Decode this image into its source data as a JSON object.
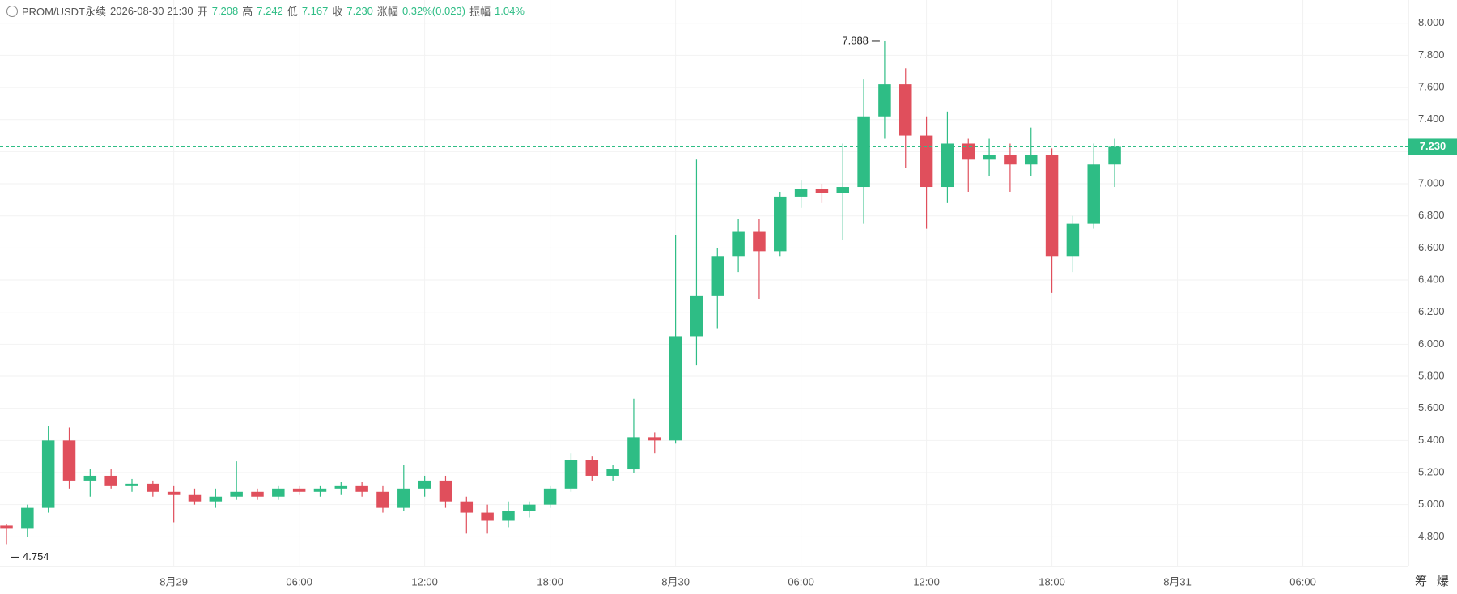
{
  "header": {
    "symbol": "PROM/USDT永续",
    "time": "2026-08-30 21:30",
    "open_label": "开",
    "open": "7.208",
    "high_label": "高",
    "high": "7.242",
    "low_label": "低",
    "low": "7.167",
    "close_label": "收",
    "close": "7.230",
    "change_label": "涨幅",
    "change": "0.32%(0.023)",
    "amplitude_label": "振幅",
    "amplitude": "1.04%"
  },
  "side_buttons": [
    "筹",
    "爆"
  ],
  "chart_data": {
    "type": "candlestick",
    "up_color": "#2ebd85",
    "down_color": "#e04f5c",
    "grid": true,
    "x": [
      -8,
      -7,
      -6,
      -5,
      -4,
      -3,
      -2,
      -1,
      0,
      1,
      2,
      3,
      4,
      5,
      6,
      7,
      8,
      9,
      10,
      11,
      12,
      13,
      14,
      15,
      16,
      17,
      18,
      19,
      20,
      21,
      22,
      23,
      24,
      25,
      26,
      27,
      28,
      29,
      30,
      31,
      32,
      33,
      34,
      35,
      36,
      37,
      38,
      39,
      40,
      41,
      42,
      43,
      44,
      45
    ],
    "open": [
      4.87,
      4.85,
      4.98,
      5.4,
      5.15,
      5.18,
      5.12,
      5.13,
      5.08,
      5.06,
      5.02,
      5.05,
      5.08,
      5.05,
      5.1,
      5.08,
      5.1,
      5.12,
      5.08,
      4.98,
      5.1,
      5.15,
      5.02,
      4.95,
      4.9,
      4.96,
      5.0,
      5.1,
      5.28,
      5.18,
      5.22,
      5.42,
      5.4,
      6.05,
      6.3,
      6.55,
      6.7,
      6.58,
      6.92,
      6.97,
      6.94,
      6.98,
      7.42,
      7.62,
      7.3,
      6.98,
      7.25,
      7.15,
      7.18,
      7.12,
      7.18,
      6.55,
      6.75,
      7.12
    ],
    "high": [
      4.88,
      5.0,
      5.49,
      5.48,
      5.22,
      5.22,
      5.16,
      5.15,
      5.12,
      5.1,
      5.1,
      5.27,
      5.1,
      5.12,
      5.12,
      5.12,
      5.14,
      5.14,
      5.12,
      5.25,
      5.18,
      5.18,
      5.05,
      5.0,
      5.02,
      5.02,
      5.12,
      5.32,
      5.3,
      5.25,
      5.66,
      5.45,
      6.68,
      7.15,
      6.6,
      6.78,
      6.78,
      6.95,
      7.02,
      7.0,
      7.25,
      7.65,
      7.888,
      7.72,
      7.42,
      7.45,
      7.28,
      7.28,
      7.25,
      7.35,
      7.22,
      6.8,
      7.25,
      7.28
    ],
    "low": [
      4.754,
      4.8,
      4.95,
      5.1,
      5.05,
      5.1,
      5.08,
      5.05,
      4.89,
      5.0,
      4.98,
      5.03,
      5.03,
      5.03,
      5.06,
      5.05,
      5.06,
      5.05,
      4.95,
      4.96,
      5.05,
      4.98,
      4.82,
      4.82,
      4.86,
      4.92,
      4.98,
      5.08,
      5.15,
      5.15,
      5.2,
      5.32,
      5.38,
      5.87,
      6.1,
      6.45,
      6.28,
      6.55,
      6.85,
      6.88,
      6.65,
      6.75,
      7.28,
      7.1,
      6.72,
      6.88,
      6.95,
      7.05,
      6.95,
      7.05,
      6.32,
      6.45,
      6.72,
      6.98
    ],
    "close": [
      4.85,
      4.98,
      5.4,
      5.15,
      5.18,
      5.12,
      5.13,
      5.08,
      5.06,
      5.02,
      5.05,
      5.08,
      5.05,
      5.1,
      5.08,
      5.1,
      5.12,
      5.08,
      4.98,
      5.1,
      5.15,
      5.02,
      4.95,
      4.9,
      4.96,
      5.0,
      5.1,
      5.28,
      5.18,
      5.22,
      5.42,
      5.4,
      6.05,
      6.3,
      6.55,
      6.7,
      6.58,
      6.92,
      6.97,
      6.94,
      6.98,
      7.42,
      7.62,
      7.3,
      6.98,
      7.25,
      7.15,
      7.18,
      7.12,
      7.18,
      6.55,
      6.75,
      7.12,
      7.23
    ],
    "xlim": [
      -8.31,
      59.05
    ],
    "xticks": [
      {
        "value": 0,
        "label": "8月29"
      },
      {
        "value": 6,
        "label": "06:00"
      },
      {
        "value": 12,
        "label": "12:00"
      },
      {
        "value": 18,
        "label": "18:00"
      },
      {
        "value": 24,
        "label": "8月30"
      },
      {
        "value": 30,
        "label": "06:00"
      },
      {
        "value": 36,
        "label": "12:00"
      },
      {
        "value": 42,
        "label": "18:00"
      },
      {
        "value": 48,
        "label": "8月31"
      },
      {
        "value": 54,
        "label": "06:00"
      }
    ],
    "ylim": [
      4.615,
      8.145
    ],
    "yticks": [
      {
        "value": 4.8,
        "label": "4.800"
      },
      {
        "value": 5.0,
        "label": "5.000"
      },
      {
        "value": 5.2,
        "label": "5.200"
      },
      {
        "value": 5.4,
        "label": "5.400"
      },
      {
        "value": 5.6,
        "label": "5.600"
      },
      {
        "value": 5.8,
        "label": "5.800"
      },
      {
        "value": 6.0,
        "label": "6.000"
      },
      {
        "value": 6.2,
        "label": "6.200"
      },
      {
        "value": 6.4,
        "label": "6.400"
      },
      {
        "value": 6.6,
        "label": "6.600"
      },
      {
        "value": 6.8,
        "label": "6.800"
      },
      {
        "value": 7.0,
        "label": "7.000"
      },
      {
        "value": 7.2,
        "label": "7.200"
      },
      {
        "value": 7.4,
        "label": "7.400"
      },
      {
        "value": 7.6,
        "label": "7.600"
      },
      {
        "value": 7.8,
        "label": "7.800"
      },
      {
        "value": 8.0,
        "label": "8.000"
      }
    ],
    "last_price": {
      "value": 7.23,
      "label": "7.230"
    },
    "high_marker": {
      "value": 7.888,
      "label": "7.888",
      "index": 42
    },
    "low_marker": {
      "value": 4.754,
      "label": "4.754",
      "index": 0
    }
  }
}
